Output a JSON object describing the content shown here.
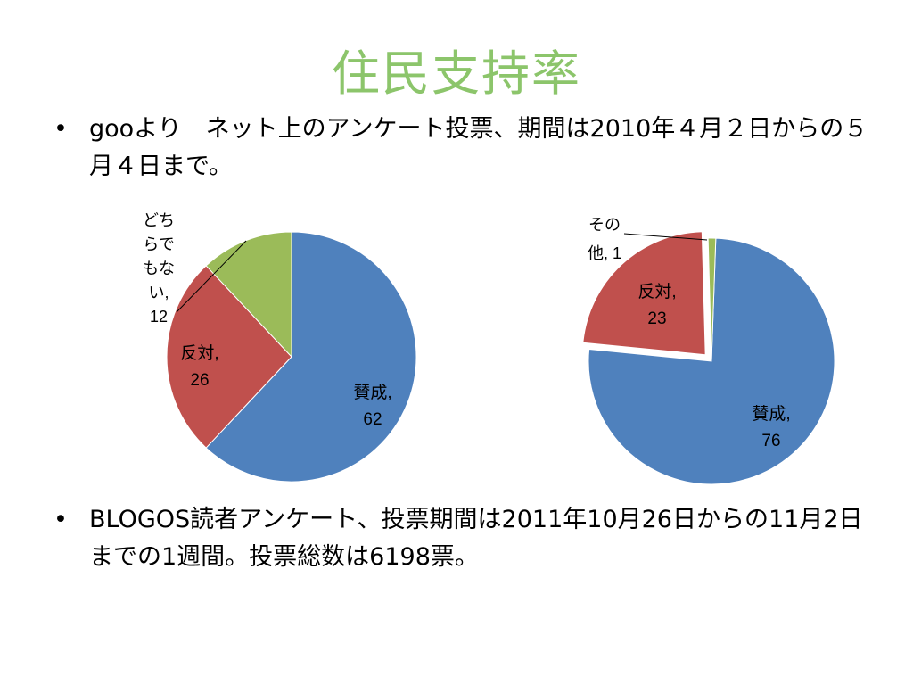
{
  "title": "住民支持率",
  "bullets": [
    {
      "dot": "•",
      "text": "gooより　ネット上のアンケート投票、期間は2010年４月２日からの５月４日まで。"
    },
    {
      "dot": "•",
      "text": "BLOGOS読者アンケート、投票期間は2011年10月26日からの11月2日までの1週間。投票総数は6198票。"
    }
  ],
  "colors": {
    "blue": "#4f81bd",
    "red": "#c0504d",
    "green": "#9bbb59",
    "title": "#8cc56b"
  },
  "chart_data": [
    {
      "type": "pie",
      "slices": [
        {
          "label": "賛成",
          "value": 62,
          "color": "#4f81bd",
          "label_lines": [
            "賛成,",
            "62"
          ]
        },
        {
          "label": "反対",
          "value": 26,
          "color": "#c0504d",
          "label_lines": [
            "反対,",
            "26"
          ]
        },
        {
          "label": "どちらでもない",
          "value": 12,
          "color": "#9bbb59",
          "label_lines": [
            "どち",
            "らで",
            "もな",
            "い,",
            "12"
          ]
        }
      ]
    },
    {
      "type": "pie",
      "slices": [
        {
          "label": "賛成",
          "value": 76,
          "color": "#4f81bd",
          "label_lines": [
            "賛成,",
            "76"
          ]
        },
        {
          "label": "反対",
          "value": 23,
          "color": "#c0504d",
          "label_lines": [
            "反対,",
            "23"
          ]
        },
        {
          "label": "その他",
          "value": 1,
          "color": "#9bbb59",
          "label_lines": [
            "その",
            "他, 1"
          ]
        }
      ]
    }
  ]
}
